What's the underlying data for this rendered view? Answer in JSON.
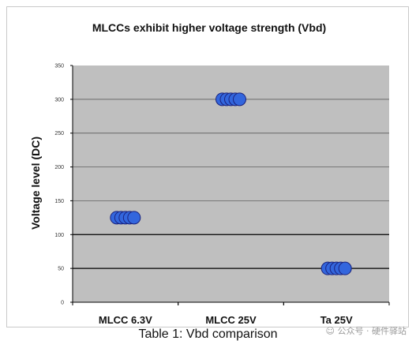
{
  "chart_data": {
    "type": "scatter",
    "title": "MLCCs exhibit higher voltage strength (Vbd)",
    "ylabel": "Voltage level (DC)",
    "xlabel": "",
    "categories": [
      "MLCC 6.3V",
      "MLCC 25V",
      "Ta 25V"
    ],
    "series": [
      {
        "values": [
          125,
          300,
          50
        ]
      }
    ],
    "points_per_category": 5,
    "ylim": [
      0,
      350
    ],
    "yticks": [
      0,
      50,
      100,
      150,
      200,
      250,
      300,
      350
    ],
    "grid": true,
    "legend": "none",
    "colors": {
      "plot_bg": "#bfbfbf",
      "marker_fill": "#3366dd",
      "marker_stroke": "#1a237e",
      "gridline": "#000000"
    }
  },
  "caption": "Table 1: Vbd comparison",
  "watermark": "公众号 · 硬件驿站"
}
